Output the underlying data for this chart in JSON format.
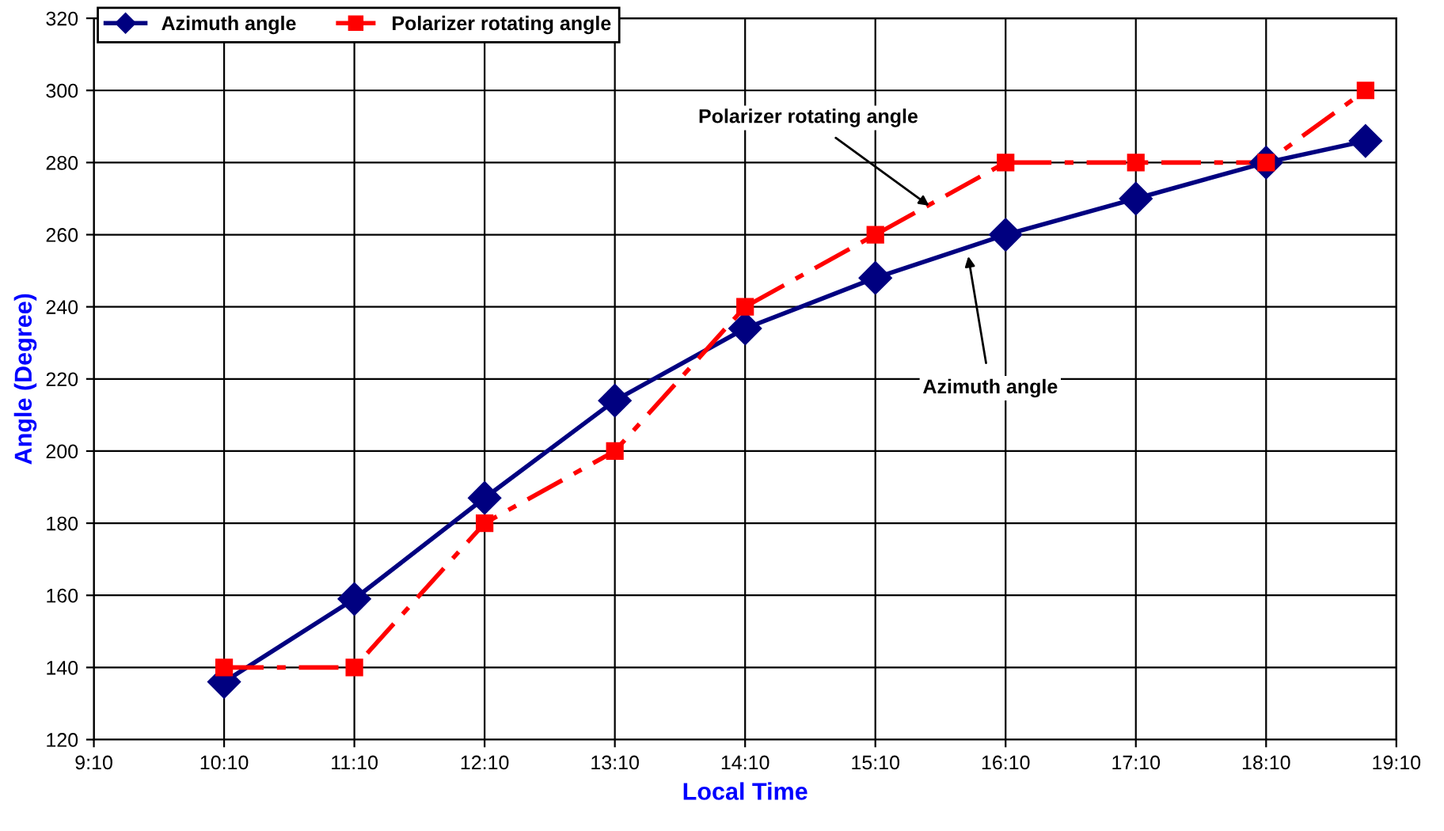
{
  "chart_data": {
    "type": "line",
    "xlabel": "Local Time",
    "ylabel": "Angle (Degree)",
    "x": [
      10.1667,
      11.1667,
      12.1667,
      13.1667,
      14.1667,
      15.1667,
      16.1667,
      17.1667,
      18.1667,
      18.93
    ],
    "series": [
      {
        "name": "Azimuth angle",
        "color": "#000080",
        "marker": "diamond",
        "line_style": "solid",
        "values": [
          136,
          159,
          187,
          214,
          234,
          248,
          260,
          270,
          280,
          286
        ]
      },
      {
        "name": "Polarizer rotating angle",
        "color": "#ff0000",
        "marker": "square",
        "line_style": "dashed",
        "values": [
          140,
          140,
          180,
          200,
          240,
          260,
          280,
          280,
          280,
          300
        ]
      }
    ],
    "xlim": [
      9.1667,
      19.1667
    ],
    "xticks": [
      {
        "value": 9.1667,
        "label": "9:10"
      },
      {
        "value": 10.1667,
        "label": "10:10"
      },
      {
        "value": 11.1667,
        "label": "11:10"
      },
      {
        "value": 12.1667,
        "label": "12:10"
      },
      {
        "value": 13.1667,
        "label": "13:10"
      },
      {
        "value": 14.1667,
        "label": "14:10"
      },
      {
        "value": 15.1667,
        "label": "15:10"
      },
      {
        "value": 16.1667,
        "label": "16:10"
      },
      {
        "value": 17.1667,
        "label": "17:10"
      },
      {
        "value": 18.1667,
        "label": "18:10"
      },
      {
        "value": 19.1667,
        "label": "19:10"
      }
    ],
    "ylim": [
      120,
      320
    ],
    "yticks": [
      120,
      140,
      160,
      180,
      200,
      220,
      240,
      260,
      280,
      300,
      320
    ],
    "grid": true,
    "legend": "top left",
    "annotations": [
      {
        "text": "Polarizer rotating angle",
        "x": 15.58,
        "y": 268
      },
      {
        "text": "Azimuth angle",
        "x": 15.88,
        "y": 254
      }
    ]
  }
}
